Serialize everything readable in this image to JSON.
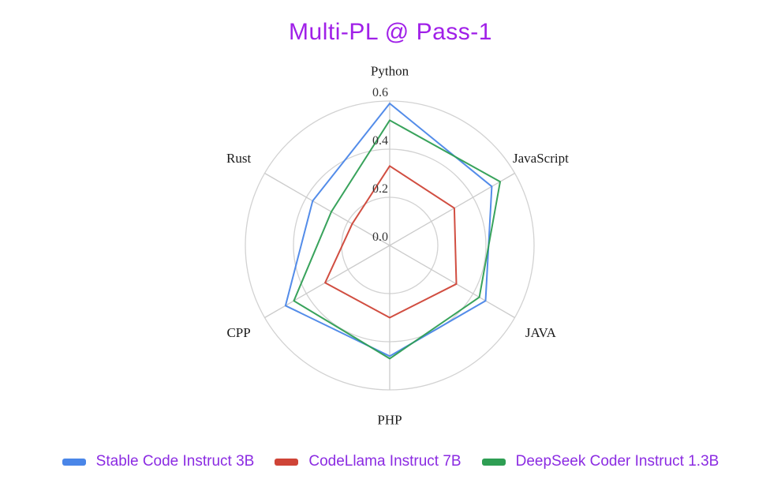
{
  "title": {
    "text": "Multi-PL @ Pass-1",
    "color": "#a020e8"
  },
  "legend": {
    "text_color": "#8b2be2",
    "position": "bottom"
  },
  "chart_data": {
    "type": "radar",
    "title": "Multi-PL @ Pass-1",
    "categories": [
      "Python",
      "JavaScript",
      "JAVA",
      "PHP",
      "CPP",
      "Rust"
    ],
    "radial_ticks": [
      0.0,
      0.2,
      0.4,
      0.6
    ],
    "radial_tick_labels": [
      "0.0",
      "0.2",
      "0.4",
      "0.6"
    ],
    "rlim": [
      0,
      0.6
    ],
    "grid": true,
    "grid_color": "#d2d2d2",
    "legend_position": "bottom",
    "series": [
      {
        "name": "Stable Code Instruct 3B",
        "color": "#4a86e8",
        "values": [
          0.59,
          0.49,
          0.46,
          0.46,
          0.5,
          0.37
        ]
      },
      {
        "name": "CodeLlama Instruct 7B",
        "color": "#cf4437",
        "values": [
          0.33,
          0.31,
          0.32,
          0.3,
          0.31,
          0.18
        ]
      },
      {
        "name": "DeepSeek Coder Instruct 1.3B",
        "color": "#2e9e53",
        "values": [
          0.52,
          0.53,
          0.43,
          0.47,
          0.46,
          0.28
        ]
      }
    ]
  }
}
